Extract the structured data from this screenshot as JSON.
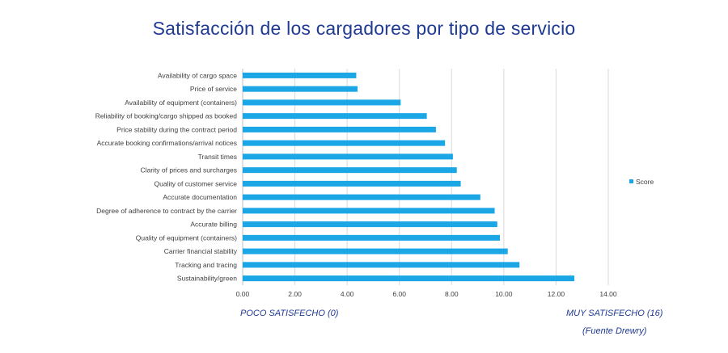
{
  "title": "Satisfacción de los cargadores por tipo de servicio",
  "scale_min_label": "POCO SATISFECHO (0)",
  "scale_max_label": "MUY SATISFECHO (16)",
  "source_note": "(Fuente Drewry)",
  "chart_data": {
    "type": "bar",
    "orientation": "horizontal",
    "title": "Satisfacción de los cargadores por tipo de servicio",
    "xlabel": "",
    "ylabel": "",
    "xlim": [
      0,
      14
    ],
    "xticks": [
      "0.00",
      "2.00",
      "4.00",
      "6.00",
      "8.00",
      "10.00",
      "12.00",
      "14.00"
    ],
    "grid": true,
    "legend_position": "right",
    "series": [
      {
        "name": "Score",
        "color": "#1ba6e6",
        "values": [
          4.35,
          4.4,
          6.05,
          7.05,
          7.4,
          7.75,
          8.05,
          8.2,
          8.35,
          9.1,
          9.65,
          9.75,
          9.85,
          10.15,
          10.6,
          12.7
        ]
      }
    ],
    "categories": [
      "Availability of cargo space",
      "Price of service",
      "Availability of equipment (containers)",
      "Reliability of booking/cargo shipped as booked",
      "Price stability during the contract period",
      "Accurate booking confirmations/arrival notices",
      "Transit times",
      "Clarity of prices and surcharges",
      "Quality of customer service",
      "Accurate documentation",
      "Degree of adherence to contract by the carrier",
      "Accurate billing",
      "Quality of equipment (containers)",
      "Carrier financial stability",
      "Tracking and tracing",
      "Sustainability/green"
    ]
  }
}
